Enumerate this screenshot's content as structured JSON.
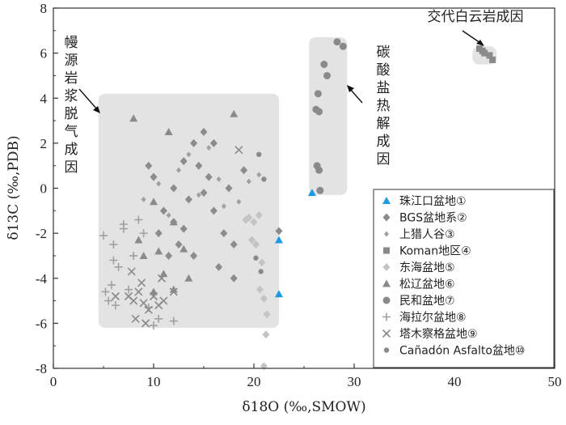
{
  "chart_data": {
    "type": "scatter",
    "xlabel": "δ18O (‰,SMOW)",
    "ylabel": "δ13C (‰,PDB)",
    "xlim": [
      0,
      50
    ],
    "ylim": [
      -8,
      8
    ],
    "x_ticks": [
      0,
      10,
      20,
      30,
      40,
      50
    ],
    "y_ticks": [
      -8,
      -6,
      -4,
      -2,
      0,
      2,
      4,
      6,
      8
    ],
    "grid": false,
    "legend_position": "bottom-right",
    "annotations": [
      {
        "text": "交代白云岩成因",
        "orientation": "horizontal"
      },
      {
        "text": "碳酸盐热解成因",
        "orientation": "vertical"
      },
      {
        "text": "幔源岩浆脱气成因",
        "orientation": "vertical"
      }
    ],
    "regions": [
      {
        "label": "幔源岩浆脱气成因",
        "x": [
          4.5,
          22.5
        ],
        "y": [
          -6.2,
          4.2
        ]
      },
      {
        "label": "碳酸盐热解成因",
        "x": [
          25.5,
          29.3
        ],
        "y": [
          -0.3,
          6.7
        ]
      },
      {
        "label": "交代白云岩成因",
        "x": [
          41.8,
          44.2
        ],
        "y": [
          5.5,
          6.3
        ]
      }
    ],
    "series": [
      {
        "name": "珠江口盆地①",
        "marker": "triangle",
        "color": "#1e9be0",
        "points": [
          [
            25.8,
            -0.2
          ],
          [
            22.5,
            -2.3
          ],
          [
            22.5,
            -4.7
          ]
        ]
      },
      {
        "name": "BGS盆地系②",
        "marker": "diamond",
        "color": "#8c8c8c",
        "points": [
          [
            11,
            -1
          ],
          [
            12,
            0
          ],
          [
            13,
            1.2
          ],
          [
            14,
            2
          ],
          [
            15,
            2.5
          ],
          [
            15.5,
            0.5
          ],
          [
            16,
            -1
          ],
          [
            17,
            -2
          ],
          [
            12.5,
            -2.5
          ],
          [
            11.5,
            -3
          ],
          [
            14,
            -3
          ],
          [
            16.5,
            -3.5
          ],
          [
            18,
            -4
          ],
          [
            17.5,
            0
          ],
          [
            19,
            0.8
          ],
          [
            13.5,
            -0.5
          ],
          [
            15,
            -0.2
          ],
          [
            9.5,
            1
          ],
          [
            10,
            0.5
          ],
          [
            22.5,
            -1.9
          ],
          [
            16,
            2
          ],
          [
            14.5,
            1
          ],
          [
            12,
            -1.5
          ],
          [
            18,
            -2.5
          ],
          [
            10.5,
            -2
          ],
          [
            13,
            -1.8
          ]
        ]
      },
      {
        "name": "上猎人谷③",
        "marker": "small-diamond",
        "color": "#a0a0a0",
        "points": [
          [
            10.5,
            0.2
          ],
          [
            12.5,
            0.8
          ],
          [
            14.5,
            -0.3
          ],
          [
            16.5,
            0.4
          ],
          [
            18.5,
            -0.6
          ],
          [
            11.5,
            -1.2
          ],
          [
            13.5,
            1.5
          ],
          [
            15.5,
            1.8
          ],
          [
            17,
            -0.8
          ],
          [
            19.5,
            0.3
          ],
          [
            9,
            -0.5
          ],
          [
            20.5,
            0.6
          ]
        ]
      },
      {
        "name": "Koman地区④",
        "marker": "square",
        "color": "#8a8a8a",
        "points": [
          [
            42.5,
            6.2
          ],
          [
            43,
            6.0
          ],
          [
            43.5,
            5.9
          ],
          [
            42.8,
            6.1
          ],
          [
            43.8,
            5.7
          ]
        ]
      },
      {
        "name": "东海盆地⑤",
        "marker": "diamond",
        "color": "#c4c4c4",
        "points": [
          [
            19.5,
            -1.3
          ],
          [
            20,
            -1.5
          ],
          [
            20.5,
            -1.2
          ],
          [
            19.8,
            -2.3
          ],
          [
            20.2,
            -2.5
          ],
          [
            20.8,
            -3.3
          ],
          [
            20.6,
            -4.5
          ],
          [
            21,
            -4.9
          ],
          [
            21.3,
            -5.6
          ],
          [
            21.2,
            -6.5
          ],
          [
            21,
            -7.9
          ],
          [
            19.2,
            -1.4
          ]
        ]
      },
      {
        "name": "松辽盆地⑥",
        "marker": "triangle",
        "color": "#8a8a8a",
        "points": [
          [
            8,
            3.1
          ],
          [
            11.5,
            2.5
          ],
          [
            18,
            3.3
          ],
          [
            10,
            -0.6
          ],
          [
            12,
            -1.5
          ],
          [
            13,
            -2.7
          ],
          [
            9,
            -3
          ],
          [
            11,
            -3.8
          ],
          [
            12,
            -4.5
          ],
          [
            8.5,
            -2.3
          ],
          [
            10.5,
            -2.8
          ],
          [
            13.5,
            -4
          ],
          [
            10,
            -4.6
          ]
        ]
      },
      {
        "name": "民和盆地⑦",
        "marker": "circle",
        "color": "#8a8a8a",
        "points": [
          [
            28.3,
            6.5
          ],
          [
            28.9,
            6.3
          ],
          [
            27,
            5.5
          ],
          [
            27.3,
            5.0
          ],
          [
            26.4,
            4.2
          ],
          [
            26.2,
            3.5
          ],
          [
            26.5,
            3.4
          ],
          [
            26.3,
            1.0
          ],
          [
            26.5,
            0.8
          ],
          [
            26.6,
            -0.1
          ]
        ]
      },
      {
        "name": "海拉尔盆地⑧",
        "marker": "plus",
        "color": "#a0a0a0",
        "points": [
          [
            5,
            -2.1
          ],
          [
            6,
            -2.5
          ],
          [
            7,
            -1.6
          ],
          [
            6.5,
            -3.5
          ],
          [
            5.8,
            -4.3
          ],
          [
            5.5,
            -5
          ],
          [
            6.2,
            -5.2
          ],
          [
            8,
            -3
          ],
          [
            7.5,
            -4.5
          ],
          [
            9,
            -2
          ],
          [
            9.5,
            -5.3
          ],
          [
            10,
            -6.1
          ],
          [
            7,
            -1.8
          ],
          [
            6,
            -3.2
          ],
          [
            5.2,
            -4.6
          ],
          [
            8.5,
            -1.4
          ],
          [
            10.5,
            -5.8
          ],
          [
            12,
            -5.9
          ]
        ]
      },
      {
        "name": "塔木察格盆地⑨",
        "marker": "x",
        "color": "#8a8a8a",
        "points": [
          [
            7.5,
            -4.8
          ],
          [
            8,
            -5
          ],
          [
            8.5,
            -4.6
          ],
          [
            9,
            -5.1
          ],
          [
            9.5,
            -5.4
          ],
          [
            10,
            -4.8
          ],
          [
            10.5,
            -5.2
          ],
          [
            8.2,
            -5.8
          ],
          [
            9.2,
            -6
          ],
          [
            8.8,
            -4.2
          ],
          [
            7.8,
            -3.7
          ],
          [
            10.8,
            -4
          ],
          [
            11,
            -5
          ],
          [
            12,
            -4.6
          ],
          [
            6.2,
            -4.8
          ],
          [
            18.5,
            1.7
          ]
        ]
      },
      {
        "name": "Cañadón Asfalto盆地⑩",
        "marker": "small-circle",
        "color": "#8a8a8a",
        "points": [
          [
            20.5,
            1.5
          ],
          [
            21,
            0.4
          ],
          [
            20.7,
            -3.7
          ],
          [
            20.2,
            -3.1
          ]
        ]
      }
    ]
  }
}
